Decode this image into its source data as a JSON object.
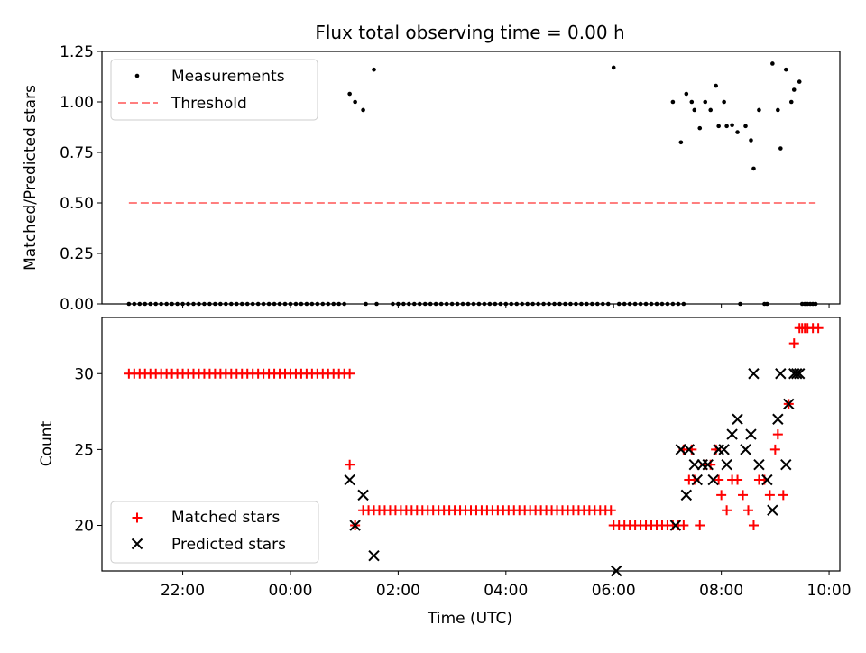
{
  "title": "Flux total observing time = 0.00 h",
  "chart_data": [
    {
      "type": "scatter",
      "title": "Flux total observing time = 0.00 h",
      "ylabel": "Matched/Predicted stars",
      "xlim": [
        20.5,
        34.2
      ],
      "ylim": [
        0,
        1.25
      ],
      "yticks": [
        0.0,
        0.25,
        0.5,
        0.75,
        1.0,
        1.25
      ],
      "ytick_labels": [
        "0.00",
        "0.25",
        "0.50",
        "0.75",
        "1.00",
        "1.25"
      ],
      "legend_position": "upper-left",
      "threshold": {
        "name": "Threshold",
        "value": 0.5,
        "x_range": [
          21.0,
          33.75
        ],
        "color": "#ff7f7f"
      },
      "series": [
        {
          "name": "Measurements",
          "color": "#000000",
          "zero_x": [
            21.0,
            21.1,
            21.2,
            21.3,
            21.4,
            21.5,
            21.6,
            21.7,
            21.8,
            21.9,
            22.0,
            22.1,
            22.2,
            22.3,
            22.4,
            22.5,
            22.6,
            22.7,
            22.8,
            22.9,
            23.0,
            23.1,
            23.2,
            23.3,
            23.4,
            23.5,
            23.6,
            23.7,
            23.8,
            23.9,
            24.0,
            24.1,
            24.2,
            24.3,
            24.4,
            24.5,
            24.6,
            24.7,
            24.8,
            24.9,
            25.0,
            25.4,
            25.6,
            25.9,
            26.0,
            26.1,
            26.2,
            26.3,
            26.4,
            26.5,
            26.6,
            26.7,
            26.8,
            26.9,
            27.0,
            27.1,
            27.2,
            27.3,
            27.4,
            27.5,
            27.6,
            27.7,
            27.8,
            27.9,
            28.0,
            28.1,
            28.2,
            28.3,
            28.4,
            28.5,
            28.6,
            28.7,
            28.8,
            28.9,
            29.0,
            29.1,
            29.2,
            29.3,
            29.4,
            29.5,
            29.6,
            29.7,
            29.8,
            29.9,
            30.1,
            30.2,
            30.3,
            30.4,
            30.5,
            30.6,
            30.7,
            30.8,
            30.9,
            31.0,
            31.1,
            31.2,
            31.3,
            32.35,
            32.8,
            32.85,
            33.5,
            33.55,
            33.6,
            33.65,
            33.7,
            33.75
          ],
          "points": [
            [
              25.1,
              1.04
            ],
            [
              25.2,
              1.0
            ],
            [
              25.35,
              0.96
            ],
            [
              25.55,
              1.16
            ],
            [
              30.0,
              1.17
            ],
            [
              31.1,
              1.0
            ],
            [
              31.25,
              0.8
            ],
            [
              31.35,
              1.04
            ],
            [
              31.45,
              1.0
            ],
            [
              31.5,
              0.96
            ],
            [
              31.6,
              0.87
            ],
            [
              31.7,
              1.0
            ],
            [
              31.8,
              0.96
            ],
            [
              31.9,
              1.08
            ],
            [
              31.95,
              0.88
            ],
            [
              32.05,
              1.0
            ],
            [
              32.1,
              0.88
            ],
            [
              32.2,
              0.885
            ],
            [
              32.3,
              0.85
            ],
            [
              32.45,
              0.88
            ],
            [
              32.55,
              0.81
            ],
            [
              32.6,
              0.67
            ],
            [
              32.7,
              0.96
            ],
            [
              32.95,
              1.19
            ],
            [
              33.05,
              0.96
            ],
            [
              33.1,
              0.77
            ],
            [
              33.2,
              1.16
            ],
            [
              33.3,
              1.0
            ],
            [
              33.35,
              1.06
            ],
            [
              33.45,
              1.1
            ]
          ]
        }
      ]
    },
    {
      "type": "scatter",
      "xlabel": "Time (UTC)",
      "ylabel": "Count",
      "xlim": [
        20.5,
        34.2
      ],
      "ylim": [
        17,
        33.7
      ],
      "yticks": [
        20,
        25,
        30
      ],
      "ytick_labels": [
        "20",
        "25",
        "30"
      ],
      "xticks": [
        22,
        24,
        26,
        28,
        30,
        32,
        34
      ],
      "xtick_labels": [
        "22:00",
        "00:00",
        "02:00",
        "04:00",
        "06:00",
        "08:00",
        "10:00"
      ],
      "legend_position": "lower-left",
      "series": [
        {
          "name": "Matched stars",
          "marker": "+",
          "color": "#ff0000",
          "runs": [
            {
              "x_start": 21.0,
              "x_end": 25.1,
              "step": 0.1,
              "y": 30
            },
            {
              "x_start": 25.35,
              "x_end": 29.95,
              "step": 0.1,
              "y": 21
            },
            {
              "x_start": 30.0,
              "x_end": 31.3,
              "step": 0.1,
              "y": 20
            }
          ],
          "points": [
            [
              25.1,
              24
            ],
            [
              25.2,
              20
            ],
            [
              31.3,
              25
            ],
            [
              31.4,
              23
            ],
            [
              31.45,
              25
            ],
            [
              31.5,
              23
            ],
            [
              31.6,
              20
            ],
            [
              31.7,
              24
            ],
            [
              31.8,
              24
            ],
            [
              31.9,
              25
            ],
            [
              31.95,
              23
            ],
            [
              32.0,
              22
            ],
            [
              32.1,
              21
            ],
            [
              32.2,
              23
            ],
            [
              32.3,
              23
            ],
            [
              32.4,
              22
            ],
            [
              32.5,
              21
            ],
            [
              32.6,
              20
            ],
            [
              32.7,
              23
            ],
            [
              32.8,
              23
            ],
            [
              32.9,
              22
            ],
            [
              33.0,
              25
            ],
            [
              33.05,
              26
            ],
            [
              33.15,
              22
            ],
            [
              33.25,
              28
            ],
            [
              33.35,
              32
            ],
            [
              33.45,
              33
            ],
            [
              33.5,
              33
            ],
            [
              33.55,
              33
            ],
            [
              33.6,
              33
            ],
            [
              33.7,
              33
            ],
            [
              33.8,
              33
            ]
          ]
        },
        {
          "name": "Predicted stars",
          "marker": "x",
          "color": "#000000",
          "points": [
            [
              25.1,
              23
            ],
            [
              25.2,
              20
            ],
            [
              25.35,
              22
            ],
            [
              25.55,
              18
            ],
            [
              30.05,
              17
            ],
            [
              31.15,
              20
            ],
            [
              31.25,
              25
            ],
            [
              31.35,
              22
            ],
            [
              31.4,
              25
            ],
            [
              31.5,
              24
            ],
            [
              31.55,
              23
            ],
            [
              31.65,
              24
            ],
            [
              31.75,
              24
            ],
            [
              31.85,
              23
            ],
            [
              31.95,
              25
            ],
            [
              32.05,
              25
            ],
            [
              32.1,
              24
            ],
            [
              32.2,
              26
            ],
            [
              32.3,
              27
            ],
            [
              32.45,
              25
            ],
            [
              32.55,
              26
            ],
            [
              32.6,
              30
            ],
            [
              32.7,
              24
            ],
            [
              32.85,
              23
            ],
            [
              32.95,
              21
            ],
            [
              33.05,
              27
            ],
            [
              33.1,
              30
            ],
            [
              33.2,
              24
            ],
            [
              33.25,
              28
            ],
            [
              33.35,
              30
            ],
            [
              33.4,
              30
            ],
            [
              33.45,
              30
            ]
          ]
        }
      ]
    }
  ]
}
